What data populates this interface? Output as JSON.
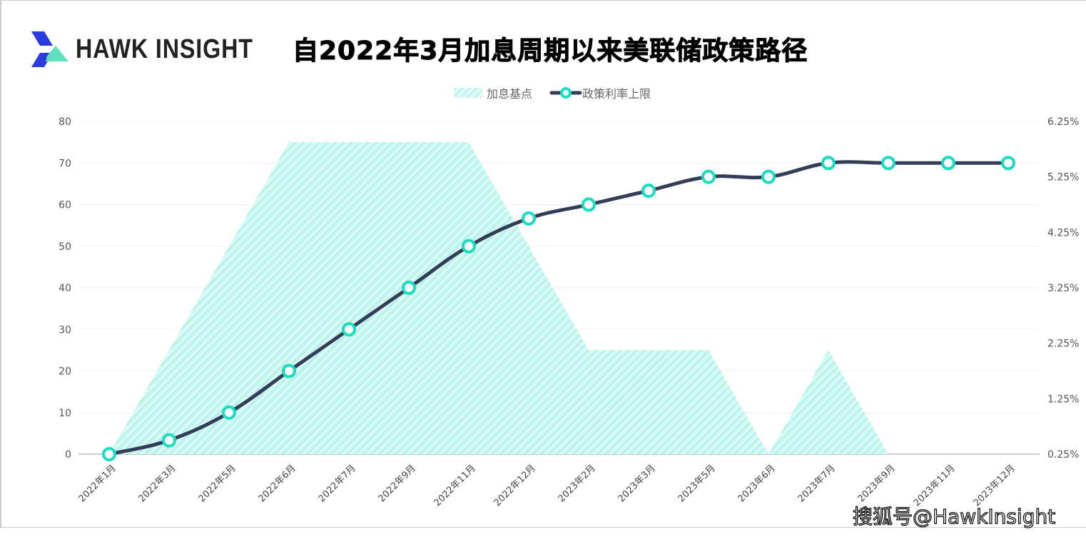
{
  "logo": {
    "text": "HAWK INSIGHT"
  },
  "title": "自2022年3月加息周期以来美联储政策路径",
  "watermark": "搜狐号@HawkInsight",
  "colors": {
    "area": "#c9f7ef",
    "line": "#333d57",
    "marker": "#19dcc0"
  },
  "chart_data": {
    "type": "line",
    "title": "自2022年3月加息周期以来美联储政策路径",
    "categories": [
      "2022年1月",
      "2022年3月",
      "2022年5月",
      "2022年6月",
      "2022年7月",
      "2022年9月",
      "2022年11月",
      "2022年12月",
      "2023年2月",
      "2023年3月",
      "2023年5月",
      "2023年6月",
      "2023年7月",
      "2023年9月",
      "2023年11月",
      "2023年12月"
    ],
    "series": [
      {
        "name": "加息基点",
        "type": "area",
        "axis": "left",
        "values": [
          0,
          25,
          50,
          75,
          75,
          75,
          75,
          50,
          25,
          25,
          25,
          0,
          25,
          0,
          null,
          null
        ]
      },
      {
        "name": "政策利率上限",
        "type": "line",
        "axis": "right",
        "values": [
          0.25,
          0.5,
          1.0,
          1.75,
          2.5,
          3.25,
          4.0,
          4.5,
          4.75,
          5.0,
          5.25,
          5.25,
          5.5,
          5.5,
          5.5,
          5.5
        ]
      }
    ],
    "y_left": {
      "ylim": [
        0,
        80
      ],
      "ticks": [
        "0",
        "10",
        "20",
        "30",
        "40",
        "50",
        "60",
        "70",
        "80"
      ]
    },
    "y_right": {
      "ylim": [
        0.25,
        6.25
      ],
      "ticks": [
        "0.25%",
        "1.25%",
        "2.25%",
        "3.25%",
        "4.25%",
        "5.25%",
        "6.25%"
      ]
    },
    "grid": true,
    "legend": "top-center"
  }
}
